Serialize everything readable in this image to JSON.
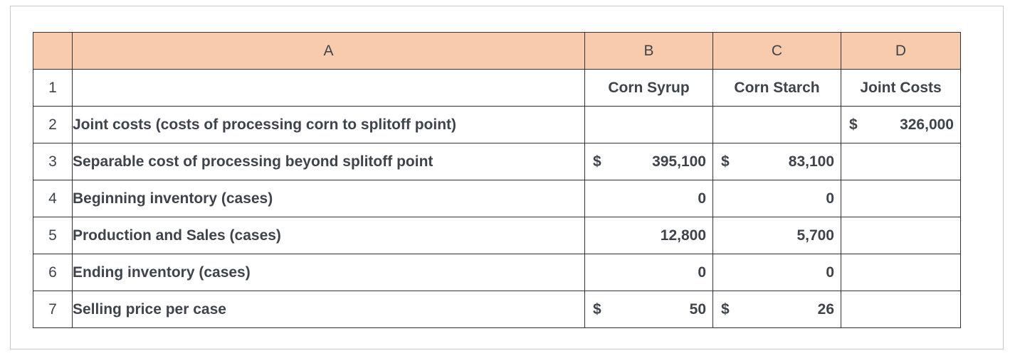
{
  "colors": {
    "header_bg": "#F8CBAD",
    "grid_border": "#333333",
    "text": "#3e434c",
    "frame_border": "#c9c9c9"
  },
  "sheet": {
    "corner_label": "",
    "columns": {
      "a": "A",
      "b": "B",
      "c": "C",
      "d": "D"
    },
    "rows": [
      {
        "num": "1",
        "a": "",
        "b": "Corn Syrup",
        "c": "Corn Starch",
        "d": "Joint Costs"
      },
      {
        "num": "2",
        "a": "Joint costs (costs of processing corn to splitoff point)",
        "b_val": "",
        "c_val": "",
        "d_cur": "$",
        "d_val": "326,000"
      },
      {
        "num": "3",
        "a": "Separable cost of processing beyond splitoff point",
        "b_cur": "$",
        "b_val": "395,100",
        "c_cur": "$",
        "c_val": "83,100",
        "d_val": ""
      },
      {
        "num": "4",
        "a": "Beginning inventory (cases)",
        "b_val": "0",
        "c_val": "0",
        "d_val": ""
      },
      {
        "num": "5",
        "a": "Production and Sales (cases)",
        "b_val": "12,800",
        "c_val": "5,700",
        "d_val": ""
      },
      {
        "num": "6",
        "a": "Ending inventory (cases)",
        "b_val": "0",
        "c_val": "0",
        "d_val": ""
      },
      {
        "num": "7",
        "a": "Selling price per case",
        "b_cur": "$",
        "b_val": "50",
        "c_cur": "$",
        "c_val": "26",
        "d_val": ""
      }
    ]
  }
}
